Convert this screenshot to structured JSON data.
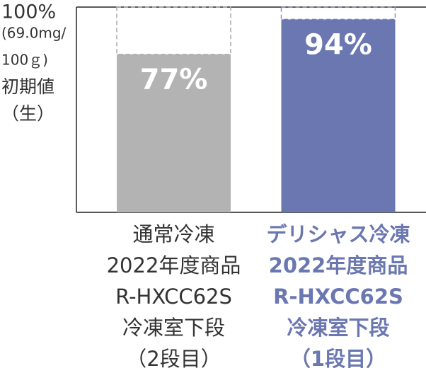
{
  "chart_data": {
    "type": "bar",
    "categories": [
      [
        "通常冷凍",
        "2022年度商品",
        "R-HXCC62S",
        "冷凍室下段",
        "（2段目）"
      ],
      [
        "デリシャス冷凍",
        "2022年度商品",
        "R-HXCC62S",
        "冷凍室下段",
        "（1段目）"
      ]
    ],
    "values": [
      77,
      94
    ],
    "value_labels": [
      "77%",
      "94%"
    ],
    "colors": [
      "#b3b3b3",
      "#6b77b0"
    ],
    "ylim": [
      0,
      100
    ],
    "yticks": [
      {
        "value": 100,
        "label": "100%"
      }
    ],
    "ylabel": [
      "(69.0mg/",
      "100ｇ)",
      "初期値",
      "（生）"
    ]
  }
}
